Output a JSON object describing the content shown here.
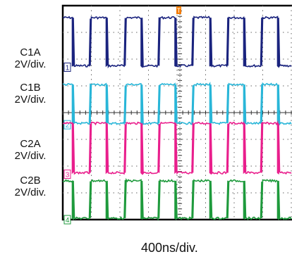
{
  "chart_data": {
    "type": "line",
    "title": "",
    "xlabel": "400ns/div.",
    "ylabel": "",
    "grid": true,
    "trigger_marker": "T",
    "channels": [
      {
        "id": "1",
        "label": "C1A",
        "scale": "2V/div.",
        "color": "#1a237e",
        "high_div": 7.55,
        "low_div": 5.75
      },
      {
        "id": "2",
        "label": "C1B",
        "scale": "2V/div.",
        "color": "#29b6d8",
        "high_div": 5.05,
        "low_div": 3.6
      },
      {
        "id": "3",
        "label": "C2A",
        "scale": "2V/div.",
        "color": "#e91e8c",
        "high_div": 3.6,
        "low_div": 1.75
      },
      {
        "id": "4",
        "label": "C2B",
        "scale": "2V/div.",
        "color": "#1e9a3c",
        "high_div": 1.45,
        "low_div": 0.05
      }
    ],
    "period_div": 1.2,
    "duty": 0.5,
    "x_divisions": 10,
    "y_divisions": 8
  }
}
